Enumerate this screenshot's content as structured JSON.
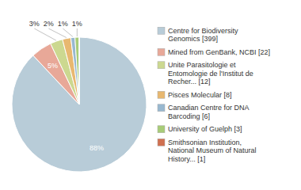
{
  "chart_data": {
    "type": "pie",
    "categories": [
      "Centre for Biodiversity\nGenomics [399]",
      "Mined from GenBank, NCBI [22]",
      "Unite Parasitologie et\nEntomologie de l'Institut de\nRecher... [12]",
      "Pisces Molecular [8]",
      "Canadian Centre for DNA\nBarcoding [6]",
      "University of Guelph [3]",
      "Smithsonian Institution,\nNational Museum of Natural\nHistory... [1]"
    ],
    "values": [
      88,
      5,
      3,
      2,
      1,
      1,
      0
    ],
    "value_labels": [
      "88%",
      "5%",
      "3%",
      "2%",
      "1%",
      "1%",
      null
    ],
    "colors": [
      "#b8ccd8",
      "#e8a898",
      "#ccd890",
      "#e8b870",
      "#98b8d0",
      "#a8cc78",
      "#d07050"
    ],
    "data_labels": true,
    "legend": "right"
  }
}
